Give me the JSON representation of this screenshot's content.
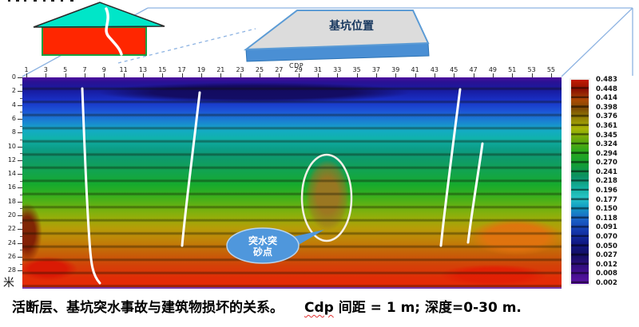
{
  "pit": {
    "label": "基坑位置"
  },
  "axes": {
    "cdp_title": "CDP",
    "cdp_ticks": [
      "1",
      "3",
      "5",
      "7",
      "9",
      "11",
      "13",
      "15",
      "17",
      "19",
      "21",
      "23",
      "25",
      "27",
      "29",
      "31",
      "33",
      "35",
      "37",
      "39",
      "41",
      "43",
      "45",
      "47",
      "49",
      "51",
      "53",
      "55"
    ],
    "depth_ticks": [
      "0",
      "2",
      "4",
      "6",
      "8",
      "10",
      "12",
      "14",
      "16",
      "18",
      "20",
      "22",
      "24",
      "26",
      "28"
    ],
    "depth_unit": "米"
  },
  "colorbar": {
    "values": [
      "0.483",
      "0.448",
      "0.414",
      "0.398",
      "0.376",
      "0.361",
      "0.345",
      "0.324",
      "0.294",
      "0.270",
      "0.241",
      "0.218",
      "0.196",
      "0.177",
      "0.150",
      "0.118",
      "0.091",
      "0.070",
      "0.050",
      "0.027",
      "0.012",
      "0.008",
      "0.002"
    ]
  },
  "annotations": {
    "callout_line1": "突水突",
    "callout_line2": "砂点"
  },
  "caption": {
    "part1": "活断层、基坑突水事故与建筑物损坏的关系。",
    "cdp_word": "Cdp",
    "part2_rest": " 间距 = 1 m; 深度=0-30 m."
  },
  "colors": {
    "callout_blue": "#4f97dc",
    "pit_top_gray": "#dcdcdc",
    "pit_edge_blue": "#4a8fd4",
    "house_body_red": "#ff2600",
    "house_roof_teal": "#00e6c8",
    "wireframe_blue": "#8db3e2"
  }
}
